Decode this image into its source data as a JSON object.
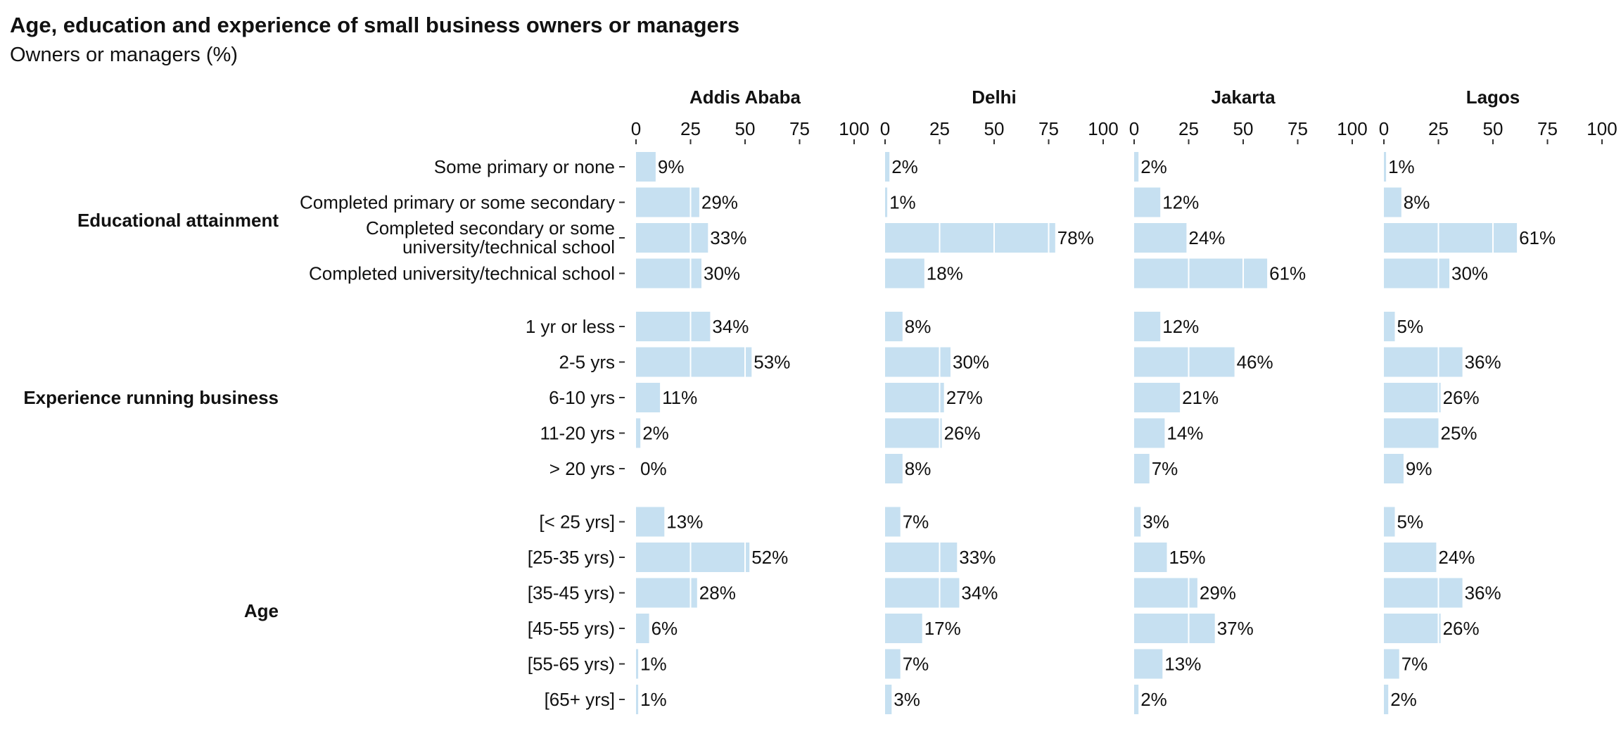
{
  "chart_data": {
    "type": "bar",
    "orientation": "horizontal",
    "title": "Age, education and experience of small business owners or managers",
    "subtitle": "Owners or managers (%)",
    "xlim": [
      0,
      100
    ],
    "xticks": [
      "0",
      "25",
      "50",
      "75",
      "100"
    ],
    "grid": false,
    "bar_color": "#c6e0f1",
    "value_suffix": "%",
    "panels": [
      "Addis Ababa",
      "Delhi",
      "Jakarta",
      "Lagos"
    ],
    "groups": [
      {
        "label": "Educational attainment",
        "categories": [
          "Some primary or none",
          "Completed primary or some secondary",
          "Completed secondary or some university/technical school",
          "Completed university/technical school"
        ],
        "series": [
          {
            "panel": "Addis Ababa",
            "values": [
              9,
              29,
              33,
              30
            ]
          },
          {
            "panel": "Delhi",
            "values": [
              2,
              1,
              78,
              18
            ]
          },
          {
            "panel": "Jakarta",
            "values": [
              2,
              12,
              24,
              61
            ]
          },
          {
            "panel": "Lagos",
            "values": [
              1,
              8,
              61,
              30
            ]
          }
        ]
      },
      {
        "label": "Experience running business",
        "categories": [
          "1 yr or less",
          "2-5 yrs",
          "6-10 yrs",
          "11-20 yrs",
          "> 20 yrs"
        ],
        "series": [
          {
            "panel": "Addis Ababa",
            "values": [
              34,
              53,
              11,
              2,
              0
            ]
          },
          {
            "panel": "Delhi",
            "values": [
              8,
              30,
              27,
              26,
              8
            ]
          },
          {
            "panel": "Jakarta",
            "values": [
              12,
              46,
              21,
              14,
              7
            ]
          },
          {
            "panel": "Lagos",
            "values": [
              5,
              36,
              26,
              25,
              9
            ]
          }
        ]
      },
      {
        "label": "Age",
        "categories": [
          "[< 25 yrs]",
          "[25-35 yrs)",
          "[35-45 yrs)",
          "[45-55 yrs)",
          "[55-65 yrs)",
          "[65+ yrs]"
        ],
        "series": [
          {
            "panel": "Addis Ababa",
            "values": [
              13,
              52,
              28,
              6,
              1,
              1
            ]
          },
          {
            "panel": "Delhi",
            "values": [
              7,
              33,
              34,
              17,
              7,
              3
            ]
          },
          {
            "panel": "Jakarta",
            "values": [
              3,
              15,
              29,
              37,
              13,
              2
            ]
          },
          {
            "panel": "Lagos",
            "values": [
              5,
              24,
              36,
              26,
              7,
              2
            ]
          }
        ]
      }
    ]
  }
}
